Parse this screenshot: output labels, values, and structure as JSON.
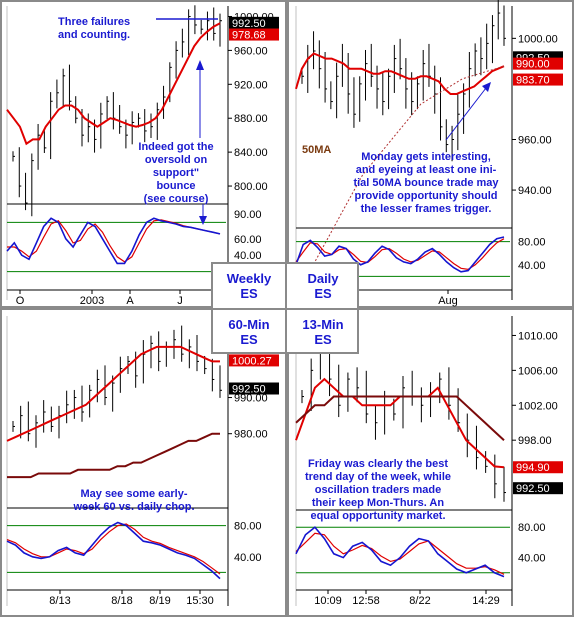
{
  "colors": {
    "price": "#000000",
    "ma_fast": "#e00000",
    "ma_slow": "#7a0a0a",
    "osc_fast": "#1515d0",
    "osc_slow": "#e00000",
    "band": "#008000",
    "annot": "#1a1ad0",
    "ma50": "#7a3a10",
    "frame": "#8a8a8a",
    "label_red": "#e00000",
    "label_black": "#000000"
  },
  "legend": {
    "weekly": "Weekly",
    "daily": "Daily",
    "min60": "60-Min",
    "min13": "13-Min",
    "es": "ES"
  },
  "chart_data": [
    {
      "id": "weekly",
      "type": "line",
      "timeframe": "Weekly ES",
      "y_ticks": [
        "1000.00",
        "960.00",
        "920.00",
        "880.00",
        "840.00",
        "800.00"
      ],
      "x_ticks": [
        "O",
        "2003",
        "A",
        "J"
      ],
      "osc_ticks": [
        "90.00",
        "60.00",
        "40.00"
      ],
      "price_label": "992.50",
      "ma_label": "978.68",
      "annotation_top": [
        "Three failures",
        "and counting."
      ],
      "annotation_side": [
        "Indeed got the",
        "oversold on",
        "support\"",
        "bounce",
        "(see course)"
      ],
      "closes": [
        835,
        800,
        780,
        830,
        860,
        845,
        900,
        910,
        930,
        900,
        880,
        860,
        870,
        855,
        885,
        900,
        880,
        870,
        860,
        875,
        880,
        865,
        870,
        890,
        905,
        940,
        960,
        970,
        1000,
        990,
        985,
        995,
        980,
        995
      ],
      "ma": [
        890,
        880,
        870,
        850,
        855,
        855,
        870,
        880,
        890,
        895,
        895,
        890,
        880,
        875,
        870,
        875,
        880,
        878,
        875,
        872,
        870,
        872,
        875,
        880,
        890,
        905,
        920,
        935,
        950,
        965,
        975,
        982,
        988,
        992
      ],
      "osc_fast": [
        45,
        55,
        40,
        35,
        55,
        75,
        85,
        80,
        60,
        50,
        65,
        80,
        75,
        60,
        45,
        30,
        30,
        45,
        65,
        80,
        85,
        82,
        80,
        78,
        75,
        74,
        72,
        70,
        68,
        66
      ],
      "osc_slow": [
        50,
        50,
        45,
        38,
        45,
        62,
        78,
        82,
        70,
        55,
        58,
        72,
        78,
        68,
        52,
        38,
        32,
        38,
        55,
        72,
        82,
        83,
        81,
        79,
        76,
        74,
        72,
        70,
        68,
        66
      ]
    },
    {
      "id": "daily",
      "type": "line",
      "timeframe": "Daily ES",
      "y_ticks": [
        "1000.00",
        "960.00",
        "940.00"
      ],
      "x_ticks": [
        "Aug"
      ],
      "osc_ticks": [
        "80.00",
        "40.00"
      ],
      "price_label": "992.50",
      "ma_labels": [
        "990.00",
        "983.70"
      ],
      "ma50_label": "50MA",
      "annotation": [
        "Monday gets interesting,",
        "and eyeing at least one ini-",
        "tial 50MA bounce trade may",
        "provide opportunity should",
        "the lesser frames trigger."
      ],
      "closes": [
        985,
        992,
        995,
        988,
        980,
        975,
        985,
        990,
        978,
        970,
        982,
        990,
        985,
        980,
        975,
        985,
        992,
        988,
        980,
        975,
        982,
        990,
        985,
        978,
        965,
        958,
        960,
        970,
        978,
        988,
        995,
        992,
        998,
        1005,
        1010,
        1000
      ],
      "ma": [
        980,
        988,
        992,
        994,
        993,
        992,
        992,
        991,
        990,
        988,
        988,
        988,
        987,
        986,
        986,
        987,
        987,
        986,
        985,
        984,
        984,
        985,
        985,
        984,
        983,
        980,
        978,
        978,
        979,
        980,
        981,
        983,
        985,
        987,
        988,
        989
      ],
      "ma50": [
        900,
        905,
        910,
        916,
        922,
        928,
        934,
        940,
        946,
        950,
        954,
        958,
        962,
        966,
        970,
        974,
        976,
        978,
        980,
        982,
        984,
        985,
        986,
        987,
        988,
        989
      ],
      "osc_fast": [
        40,
        75,
        82,
        70,
        55,
        58,
        72,
        68,
        50,
        40,
        45,
        60,
        72,
        66,
        52,
        45,
        42,
        50,
        62,
        68,
        58,
        45,
        35,
        28,
        30,
        45,
        60,
        75,
        85,
        88
      ],
      "osc_slow": [
        45,
        62,
        78,
        76,
        62,
        58,
        66,
        68,
        58,
        46,
        44,
        54,
        66,
        68,
        60,
        50,
        45,
        48,
        56,
        64,
        62,
        52,
        42,
        34,
        32,
        40,
        52,
        66,
        78,
        85
      ]
    },
    {
      "id": "min60",
      "type": "line",
      "timeframe": "60-Min ES",
      "y_ticks": [
        "990.00",
        "980.00"
      ],
      "x_ticks": [
        "8/13",
        "8/18",
        "8/19",
        "15:30"
      ],
      "osc_ticks": [
        "80.00",
        "40.00"
      ],
      "price_label": "992.50",
      "ma_label": "1000.27",
      "annotation": [
        "May see some early-",
        "week 60 vs. daily chop."
      ],
      "closes": [
        982,
        985,
        980,
        983,
        986,
        982,
        985,
        988,
        990,
        986,
        992,
        995,
        990,
        994,
        998,
        1000,
        996,
        1002,
        1005,
        1000,
        1004,
        1006,
        1002,
        1004,
        1000,
        998,
        995,
        992
      ],
      "ma_fast": [
        978,
        979,
        980,
        981,
        982,
        983,
        984,
        985,
        986,
        987,
        988,
        990,
        992,
        994,
        996,
        998,
        1000,
        1002,
        1003,
        1004,
        1004,
        1004,
        1004,
        1003,
        1002,
        1001,
        1000,
        1000
      ],
      "ma_slow": [
        968,
        968,
        968,
        968,
        969,
        969,
        969,
        969,
        969,
        970,
        970,
        970,
        970,
        970,
        971,
        971,
        972,
        972,
        973,
        974,
        975,
        976,
        977,
        978,
        978,
        979,
        980,
        980
      ],
      "osc_fast": [
        60,
        55,
        45,
        40,
        38,
        40,
        48,
        52,
        45,
        42,
        55,
        68,
        78,
        84,
        80,
        70,
        60,
        58,
        55,
        50,
        45,
        42,
        38,
        30,
        22,
        12
      ],
      "osc_slow": [
        62,
        58,
        50,
        44,
        40,
        40,
        45,
        50,
        48,
        44,
        50,
        62,
        72,
        80,
        82,
        75,
        65,
        60,
        57,
        52,
        48,
        44,
        40,
        34,
        26,
        18
      ]
    },
    {
      "id": "min13",
      "type": "line",
      "timeframe": "13-Min ES",
      "y_ticks": [
        "1010.00",
        "1006.00",
        "1002.00",
        "998.00"
      ],
      "x_ticks": [
        "10:09",
        "12:58",
        "8/22",
        "14:29"
      ],
      "osc_ticks": [
        "80.00",
        "40.00"
      ],
      "price_label": "992.50",
      "ma_label": "994.90",
      "annotation": [
        "Friday was clearly the best",
        "trend day of the week, while",
        "oscillation traders made",
        "their keep Mon-Thurs.  An",
        "equal opportunity market."
      ],
      "closes": [
        1003,
        1006,
        1008,
        1005,
        1002,
        1005,
        1004,
        1001,
        1000,
        1002,
        1001,
        1004,
        1003,
        1002,
        1003,
        1005,
        1002,
        1000,
        998,
        996,
        995,
        993,
        992
      ],
      "ma_fast": [
        998,
        1001,
        1004,
        1005,
        1004,
        1003,
        1003,
        1002,
        1002,
        1002,
        1002,
        1003,
        1003,
        1003,
        1003,
        1004,
        1002,
        1000,
        998,
        997,
        996,
        995,
        994.9
      ],
      "ma_slow": [
        1000,
        1001,
        1002,
        1002,
        1003,
        1003,
        1003,
        1003,
        1003,
        1003,
        1003,
        1003,
        1003,
        1003,
        1003,
        1003,
        1003,
        1003,
        1002,
        1001,
        1000,
        999,
        998
      ],
      "osc_fast": [
        45,
        70,
        80,
        65,
        45,
        40,
        55,
        60,
        50,
        35,
        30,
        40,
        55,
        65,
        62,
        45,
        35,
        25,
        20,
        25,
        30,
        20,
        15
      ],
      "osc_slow": [
        48,
        60,
        72,
        70,
        55,
        45,
        50,
        56,
        52,
        42,
        35,
        38,
        48,
        58,
        62,
        52,
        42,
        32,
        26,
        26,
        28,
        24,
        18
      ]
    }
  ]
}
